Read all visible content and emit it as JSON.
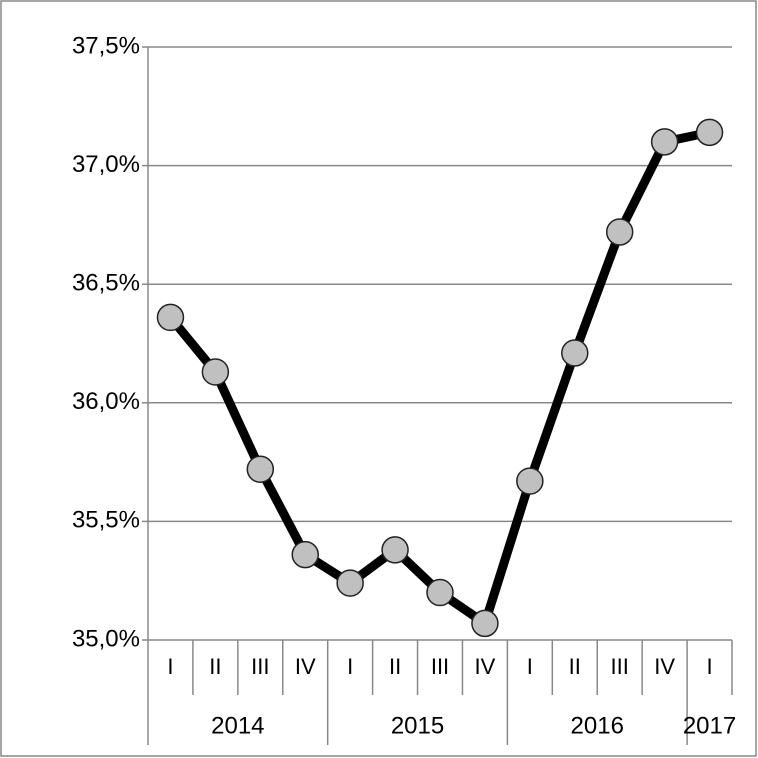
{
  "chart_data": {
    "type": "line",
    "categories": [
      "I",
      "II",
      "III",
      "IV",
      "I",
      "II",
      "III",
      "IV",
      "I",
      "II",
      "III",
      "IV",
      "I"
    ],
    "x_groups": [
      {
        "label": "2014",
        "span": 4
      },
      {
        "label": "2015",
        "span": 4
      },
      {
        "label": "2016",
        "span": 4
      },
      {
        "label": "2017",
        "span": 1
      }
    ],
    "series": [
      {
        "color": "#000000",
        "marker_color": "#c0c0c0",
        "values": [
          36.36,
          36.13,
          35.72,
          35.36,
          35.24,
          35.38,
          35.2,
          35.07,
          35.67,
          36.21,
          36.72,
          37.1,
          37.14
        ]
      }
    ],
    "ylim": [
      35.0,
      37.5
    ],
    "yticks": [
      {
        "value": 35.0,
        "label": "35,0%"
      },
      {
        "value": 35.5,
        "label": "35,5%"
      },
      {
        "value": 36.0,
        "label": "36,0%"
      },
      {
        "value": 36.5,
        "label": "36,5%"
      },
      {
        "value": 37.0,
        "label": "37,0%"
      },
      {
        "value": 37.5,
        "label": "37,5%"
      }
    ],
    "grid": true
  }
}
